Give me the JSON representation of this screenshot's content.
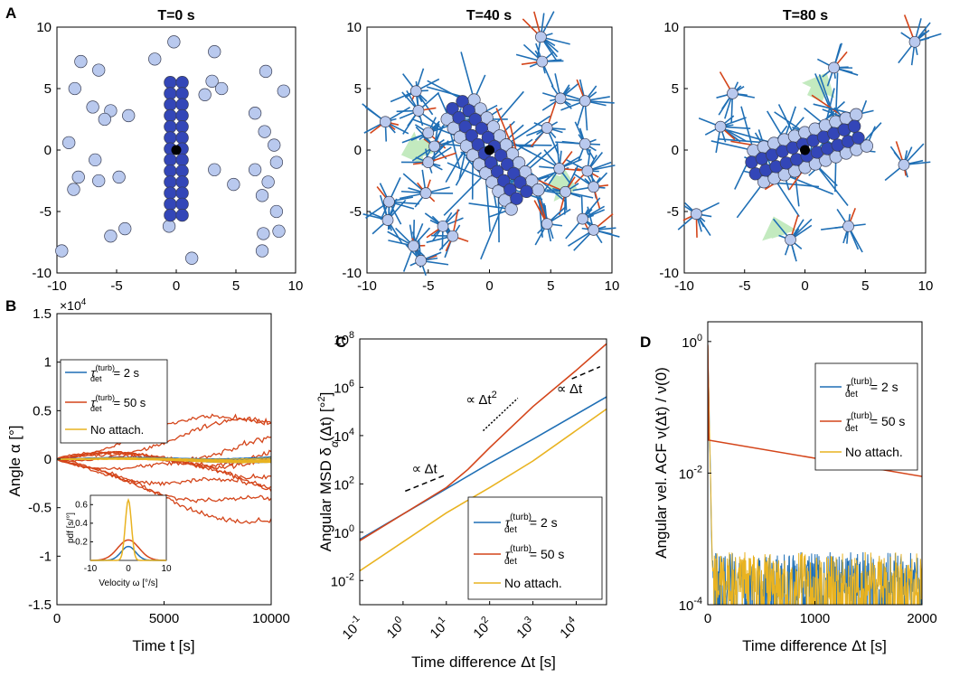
{
  "colors": {
    "blue": "#1f6fb5",
    "orange": "#d4451a",
    "yellow": "#e9b321",
    "cell_light": "#b9c9ee",
    "cell_dark": "#3346b8",
    "center": "#000000",
    "arrow": "#b8e6b4"
  },
  "panel_letters": {
    "a": "A",
    "b": "B",
    "c": "C",
    "d": "D"
  },
  "legend": {
    "entry1": {
      "sym": "τ",
      "sup": "(turb)",
      "sub": "det",
      "rest": "= 2 s"
    },
    "entry2": {
      "sym": "τ",
      "sup": "(turb)",
      "sub": "det",
      "rest": "= 50 s"
    },
    "entry3": "No attach."
  },
  "chart_data": [
    {
      "id": "A1",
      "type": "scatter",
      "title": "T=0 s",
      "xlim": [
        -10,
        10
      ],
      "ylim": [
        -10,
        10
      ],
      "xticks": [
        "-10",
        "-5",
        "0",
        "5",
        "10"
      ],
      "yticks": [
        "10",
        "5",
        "0",
        "-5",
        "-10"
      ],
      "free_cells": [
        [
          -8,
          7.2
        ],
        [
          -6.5,
          6.5
        ],
        [
          -8.5,
          5
        ],
        [
          -7,
          3.5
        ],
        [
          -5.5,
          3.2
        ],
        [
          -6,
          2.5
        ],
        [
          -4,
          2.8
        ],
        [
          -9,
          0.6
        ],
        [
          -6.8,
          -0.8
        ],
        [
          -8.2,
          -2.2
        ],
        [
          -8.6,
          -3.2
        ],
        [
          -6.5,
          -2.5
        ],
        [
          -4.8,
          -2.2
        ],
        [
          -5.5,
          -7
        ],
        [
          -4.3,
          -6.4
        ],
        [
          -9.6,
          -8.2
        ],
        [
          -0.2,
          8.8
        ],
        [
          -1.8,
          7.4
        ],
        [
          3.2,
          8
        ],
        [
          3,
          5.6
        ],
        [
          2.4,
          4.5
        ],
        [
          3.8,
          5
        ],
        [
          7.5,
          6.4
        ],
        [
          9,
          4.8
        ],
        [
          6.6,
          3
        ],
        [
          7.4,
          1.5
        ],
        [
          8.2,
          0.4
        ],
        [
          6.6,
          -1.6
        ],
        [
          7.7,
          -2.6
        ],
        [
          8.4,
          -1
        ],
        [
          3.2,
          -1.6
        ],
        [
          4.8,
          -2.8
        ],
        [
          7.2,
          -3.7
        ],
        [
          8.4,
          -5
        ],
        [
          7.3,
          -6.8
        ],
        [
          8.6,
          -6.6
        ],
        [
          7.2,
          -8.2
        ],
        [
          1.3,
          -8.8
        ],
        [
          -0.6,
          -6.2
        ]
      ],
      "cluster_cells": [
        [
          -0.5,
          5.5
        ],
        [
          0.5,
          5.5
        ],
        [
          -0.5,
          4.6
        ],
        [
          0.5,
          4.6
        ],
        [
          -0.5,
          3.7
        ],
        [
          0.5,
          3.7
        ],
        [
          -0.5,
          2.8
        ],
        [
          0.5,
          2.8
        ],
        [
          -0.5,
          1.9
        ],
        [
          0.5,
          1.9
        ],
        [
          -0.5,
          1
        ],
        [
          0.5,
          1
        ],
        [
          -0.5,
          0.1
        ],
        [
          0.5,
          0.1
        ],
        [
          -0.5,
          -0.8
        ],
        [
          0.5,
          -0.8
        ],
        [
          -0.5,
          -1.7
        ],
        [
          0.5,
          -1.7
        ],
        [
          -0.5,
          -2.6
        ],
        [
          0.5,
          -2.6
        ],
        [
          -0.5,
          -3.5
        ],
        [
          0.5,
          -3.5
        ],
        [
          -0.5,
          -4.4
        ],
        [
          0.5,
          -4.4
        ],
        [
          -0.5,
          -5.3
        ],
        [
          0.5,
          -5.3
        ]
      ],
      "center": [
        0,
        0
      ]
    },
    {
      "id": "A2",
      "type": "scatter",
      "title": "T=40 s",
      "xlim": [
        -10,
        10
      ],
      "ylim": [
        -10,
        10
      ],
      "xticks": [
        "-10",
        "-5",
        "0",
        "5",
        "10"
      ],
      "yticks": [
        "10",
        "5",
        "0",
        "-5",
        "-10"
      ],
      "free_cells": [
        [
          -8.5,
          2.3
        ],
        [
          -6,
          4.8
        ],
        [
          -5.8,
          3.2
        ],
        [
          -5,
          1.4
        ],
        [
          -4.5,
          0.3
        ],
        [
          -5,
          -1
        ],
        [
          -5.2,
          -3.5
        ],
        [
          -8.2,
          -4.2
        ],
        [
          -8.3,
          -5.7
        ],
        [
          -3.8,
          -6.2
        ],
        [
          -6.2,
          -7.8
        ],
        [
          -5.6,
          -9
        ],
        [
          -3,
          -7
        ],
        [
          4.2,
          9.2
        ],
        [
          4.3,
          7.2
        ],
        [
          5.8,
          4.2
        ],
        [
          7.8,
          4
        ],
        [
          4.7,
          1.8
        ],
        [
          7.8,
          0.5
        ],
        [
          5.7,
          -1.5
        ],
        [
          8,
          -1.7
        ],
        [
          8.5,
          -3
        ],
        [
          6.2,
          -3.4
        ],
        [
          7.6,
          -5.6
        ],
        [
          4.7,
          -6
        ],
        [
          8.5,
          -6.5
        ]
      ],
      "arrows": [
        [
          -4.8,
          0.4,
          -7.2,
          -0.4
        ],
        [
          5,
          -2.6,
          7.2,
          -3.2
        ]
      ]
    },
    {
      "id": "A3",
      "type": "scatter",
      "title": "T=80 s",
      "xlim": [
        -10,
        10
      ],
      "ylim": [
        -10,
        10
      ],
      "xticks": [
        "-10",
        "-5",
        "0",
        "5",
        "10"
      ],
      "yticks": [
        "10",
        "5",
        "0",
        "-5",
        "-10"
      ],
      "free_cells": [
        [
          9.1,
          8.8
        ],
        [
          2.4,
          6.7
        ],
        [
          -6,
          4.6
        ],
        [
          -7,
          1.9
        ],
        [
          8.2,
          -1.2
        ],
        [
          -9,
          -5.2
        ],
        [
          -1.2,
          -7.3
        ],
        [
          3.6,
          -6.2
        ]
      ],
      "arrows": [
        [
          0.8,
          4.2,
          1.8,
          6.3
        ],
        [
          -2.1,
          -7,
          -2.6,
          -5.4
        ]
      ]
    },
    {
      "id": "B",
      "type": "line",
      "xlabel": "Time t [s]",
      "ylabel": "Angle α [°]",
      "xlim": [
        0,
        10000
      ],
      "ylim": [
        -1.5,
        1.5
      ],
      "yscale_label": "×10",
      "yscale_exp": "4",
      "xticks": [
        "0",
        "5000",
        "10000"
      ],
      "yticks": [
        "1.5",
        "1",
        "0.5",
        "0",
        "-0.5",
        "-1",
        "-1.5"
      ],
      "series": [
        {
          "name": "τ_det^(turb) = 2 s",
          "color": "blue",
          "spread": 0.03
        },
        {
          "name": "τ_det^(turb) = 50 s",
          "color": "orange",
          "endpoints": [
            0.48,
            0.34,
            0.14,
            0.05,
            -0.08,
            -0.22,
            -0.38,
            -0.52,
            -0.65,
            0.03
          ]
        },
        {
          "name": "No attach.",
          "color": "yellow",
          "spread": 0.02
        }
      ],
      "inset": {
        "xlabel": "Velocity ω [°/s]",
        "ylabel": "pdf [s/°]",
        "xlim": [
          -10,
          10
        ],
        "ylim": [
          0,
          0.7
        ],
        "xticks": [
          "-10",
          "0",
          "10"
        ],
        "yticks": [
          "0.6",
          "0.4",
          "0.2"
        ],
        "peaks": {
          "orange": 0.22,
          "blue": 0.15,
          "yellow": 0.65
        }
      }
    },
    {
      "id": "C",
      "type": "line",
      "xscale": "log",
      "yscale": "log",
      "xlabel": "Time difference Δt [s]",
      "ylabel_main": "Angular MSD δ",
      "ylabel_sub": "α",
      "ylabel_tail": "(Δt) [°",
      "ylabel_sup": "2",
      "ylabel_close": "]",
      "xlim": [
        -1,
        4.7
      ],
      "ylim": [
        -3,
        8
      ],
      "xticks": [
        {
          "b": "10",
          "e": "-1"
        },
        {
          "b": "10",
          "e": "0"
        },
        {
          "b": "10",
          "e": "1"
        },
        {
          "b": "10",
          "e": "2"
        },
        {
          "b": "10",
          "e": "3"
        },
        {
          "b": "10",
          "e": "4"
        }
      ],
      "yticks": [
        {
          "b": "10",
          "e": "8"
        },
        {
          "b": "10",
          "e": "6"
        },
        {
          "b": "10",
          "e": "4"
        },
        {
          "b": "10",
          "e": "2"
        },
        {
          "b": "10",
          "e": "0"
        },
        {
          "b": "10",
          "e": "-2"
        }
      ],
      "series": [
        {
          "name": "τ_det^(turb) = 2 s",
          "color": "blue",
          "log_points": [
            [
              -1,
              -0.3
            ],
            [
              1,
              1.8
            ],
            [
              2,
              2.85
            ],
            [
              3,
              3.85
            ],
            [
              4.7,
              5.6
            ]
          ]
        },
        {
          "name": "τ_det^(turb) = 50 s",
          "color": "orange",
          "log_points": [
            [
              -1,
              -0.35
            ],
            [
              1,
              1.85
            ],
            [
              1.5,
              2.6
            ],
            [
              2,
              3.5
            ],
            [
              3,
              5.2
            ],
            [
              4,
              6.7
            ],
            [
              4.7,
              7.8
            ]
          ]
        },
        {
          "name": "No attach.",
          "color": "yellow",
          "log_points": [
            [
              -1,
              -1.6
            ],
            [
              1,
              0.8
            ],
            [
              2,
              1.85
            ],
            [
              3,
              2.95
            ],
            [
              4.7,
              5.1
            ]
          ]
        }
      ],
      "annotations": [
        {
          "text": "∝ Δt",
          "at": [
            0.85,
            2.5
          ]
        },
        {
          "text": "∝ Δt",
          "sup": "2",
          "at": [
            2.2,
            5.1
          ]
        },
        {
          "text": "∝ Δt",
          "at": [
            4.1,
            5.75
          ]
        }
      ]
    },
    {
      "id": "D",
      "type": "line",
      "yscale": "log",
      "xlabel": "Time difference Δt [s]",
      "ylabel_main": "Angular vel. ACF ν(Δt) / ν(0)",
      "xlim": [
        0,
        2000
      ],
      "ylim": [
        -4,
        0.3
      ],
      "xticks": [
        "0",
        "1000",
        "2000"
      ],
      "yticks": [
        {
          "b": "10",
          "e": "0"
        },
        {
          "b": "10",
          "e": "-2"
        },
        {
          "b": "10",
          "e": "-4"
        }
      ],
      "series": [
        {
          "name": "τ_det^(turb) = 2 s",
          "color": "blue",
          "decay": "fast-noise"
        },
        {
          "name": "τ_det^(turb) = 50 s",
          "color": "orange",
          "log_points": [
            [
              0,
              -0.05
            ],
            [
              10,
              -1.5
            ],
            [
              2000,
              -2.05
            ]
          ]
        },
        {
          "name": "No attach.",
          "color": "yellow",
          "decay": "fast-noise"
        }
      ]
    }
  ]
}
